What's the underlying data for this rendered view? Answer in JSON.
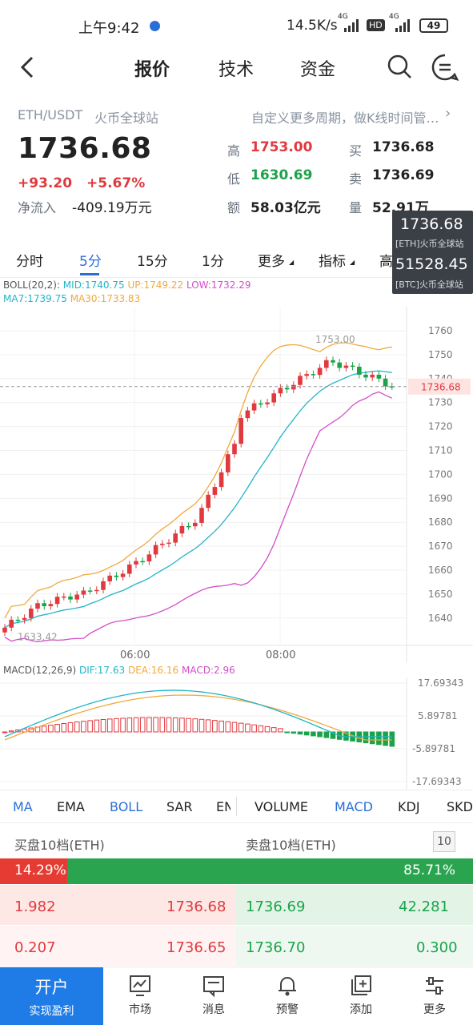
{
  "status": {
    "time": "上午9:42",
    "speed": "14.5K/s",
    "net1": "4G",
    "hd": "HD",
    "net2": "4G",
    "battery": "49"
  },
  "nav": {
    "tabs": [
      "报价",
      "技术",
      "资金"
    ]
  },
  "header": {
    "pair": "ETH/USDT",
    "exchange": "火币全球站",
    "custom_link": "自定义更多周期，做K线时间管…",
    "price": "1736.68",
    "change": "+93.20",
    "change_pct": "+5.67%",
    "netflow_label": "净流入",
    "netflow_value": "-409.19万元",
    "high_label": "高",
    "high_value": "1753.00",
    "low_label": "低",
    "low_value": "1630.69",
    "amount_label": "额",
    "amount_value": "58.03亿元",
    "buy_label": "买",
    "buy_value": "1736.68",
    "sell_label": "卖",
    "sell_value": "1736.69",
    "vol_label": "量",
    "vol_value": "52.91万"
  },
  "tooltip": {
    "eth_price": "1736.68",
    "eth_sub": "[ETH]火币全球站",
    "btc_price": "51528.45",
    "btc_sub": "[BTC]火币全球站"
  },
  "periods": {
    "items": [
      "分时",
      "5分",
      "15分",
      "1分",
      "更多",
      "指标",
      "高级"
    ],
    "active": "5分"
  },
  "boll_legend": {
    "boll": "BOLL(20,2):",
    "mid": "MID:1740.75",
    "up": "UP:1749.22",
    "low": "LOW:1732.29"
  },
  "ma_legend": {
    "ma7": "MA7:1739.75",
    "ma30": "MA30:1733.83"
  },
  "price_chart": {
    "y_ticks": [
      "1760",
      "1750",
      "1740",
      "1730",
      "1720",
      "1710",
      "1700",
      "1690",
      "1680",
      "1670",
      "1660",
      "1650",
      "1640"
    ],
    "current_price": "1736.68",
    "max_label": "1753.00",
    "min_label": "1633.42",
    "x_ticks": [
      "06:00",
      "08:00"
    ]
  },
  "macd_legend": {
    "macd": "MACD(12,26,9)",
    "dif": "DIF:17.63",
    "dea": "DEA:16.16",
    "val": "MACD:2.96"
  },
  "macd_chart": {
    "y_ticks": [
      "17.69343",
      "5.89781",
      "-5.89781",
      "-17.69343"
    ]
  },
  "indicators": {
    "items": [
      "MA",
      "EMA",
      "BOLL",
      "SAR",
      "EN",
      "VOLUME",
      "MACD",
      "KDJ",
      "SKD"
    ],
    "active": [
      "BOLL",
      "MACD"
    ]
  },
  "orderbook": {
    "buy_title": "买盘10档(ETH)",
    "sell_title": "卖盘10档(ETH)",
    "depth": "10",
    "buy_pct": "14.29%",
    "sell_pct": "85.71%",
    "buy_ratio": 0.1429,
    "rows": [
      {
        "bid_qty": "1.982",
        "bid_price": "1736.68",
        "ask_price": "1736.69",
        "ask_qty": "42.281"
      },
      {
        "bid_qty": "0.207",
        "bid_price": "1736.65",
        "ask_price": "1736.70",
        "ask_qty": "0.300"
      }
    ]
  },
  "bottom_nav": {
    "open_title": "开户",
    "open_sub": "实现盈利",
    "items": [
      "市场",
      "消息",
      "预警",
      "添加",
      "更多"
    ]
  },
  "colors": {
    "up": "#e0393e",
    "down": "#1aa34a",
    "accent": "#2a6fd6",
    "boll_up": "#f2a93b",
    "boll_low": "#d24fc8",
    "ma": "#22b5c8"
  }
}
